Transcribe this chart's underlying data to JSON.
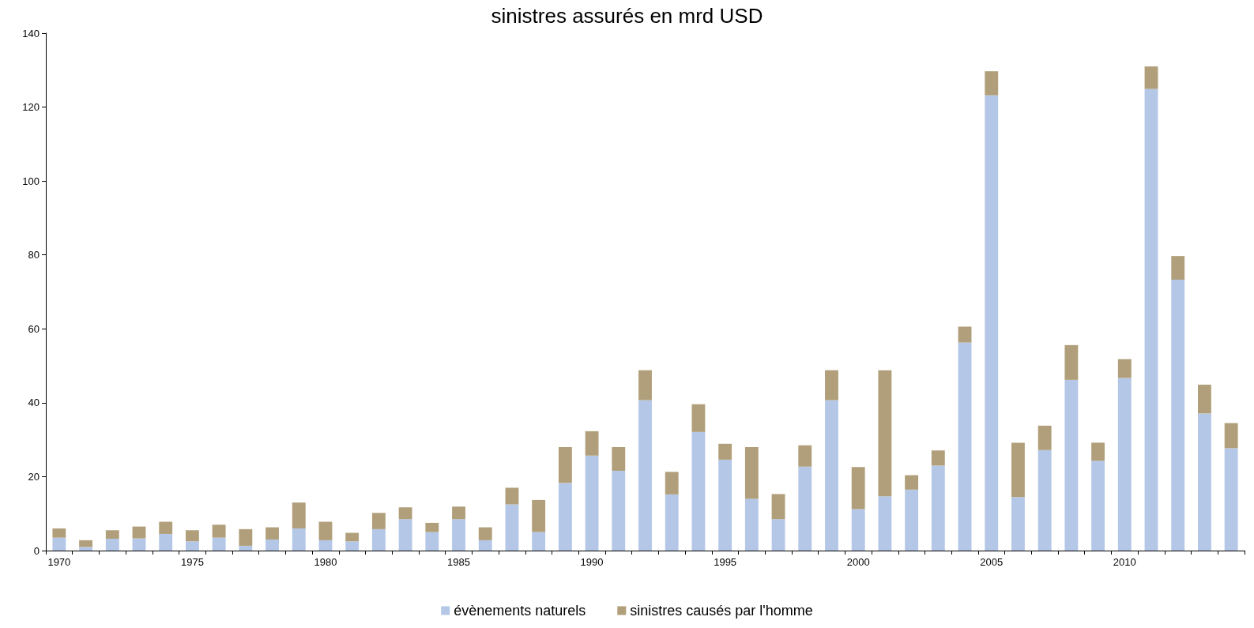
{
  "chart_data": {
    "type": "bar",
    "title": "sinistres assurés en mrd USD",
    "stacked": true,
    "categories": [
      "1970",
      null,
      null,
      null,
      null,
      "1975",
      null,
      null,
      null,
      null,
      "1980",
      null,
      null,
      null,
      null,
      "1985",
      null,
      null,
      null,
      null,
      "1990",
      null,
      null,
      null,
      null,
      "1995",
      null,
      null,
      null,
      null,
      "2000",
      null,
      null,
      null,
      null,
      "2005",
      null,
      null,
      null,
      null,
      "2010",
      null,
      null,
      null,
      null
    ],
    "series": [
      {
        "name": "évènements naturels",
        "color": "#b4c7e7",
        "values": [
          3.5,
          1,
          3.2,
          3.3,
          4.5,
          2.5,
          3.5,
          1.3,
          3,
          6,
          2.8,
          2.5,
          5.8,
          8.5,
          5,
          8.5,
          2.8,
          12.5,
          5,
          18.3,
          25.7,
          21.6,
          40.7,
          15.2,
          32.1,
          24.6,
          14,
          8.5,
          22.7,
          40.7,
          11.2,
          14.7,
          16.5,
          23,
          56.3,
          123.2,
          14.5,
          27.2,
          46.2,
          24.3,
          46.7,
          124.9,
          73.3,
          37.1,
          27.7
        ]
      },
      {
        "name": "sinistres causés par l'homme",
        "color": "#b09f7a",
        "values": [
          2.5,
          1.8,
          2.3,
          3.2,
          3.3,
          3,
          3.5,
          4.5,
          3.3,
          7,
          5,
          2.3,
          4.4,
          3.2,
          2.5,
          3.4,
          3.5,
          4.5,
          8.7,
          9.7,
          6.6,
          6.4,
          8.1,
          6.1,
          7.5,
          4.3,
          14,
          6.8,
          5.8,
          8.1,
          11.4,
          34.1,
          3.9,
          4.1,
          4.3,
          6.5,
          14.7,
          6.6,
          9.4,
          4.9,
          5.1,
          6.1,
          6.4,
          7.8,
          6.8
        ]
      }
    ],
    "ylim": [
      0,
      140
    ],
    "yticks": [
      0,
      20,
      40,
      60,
      80,
      100,
      120,
      140
    ],
    "grid": false,
    "legend": "bottom"
  }
}
